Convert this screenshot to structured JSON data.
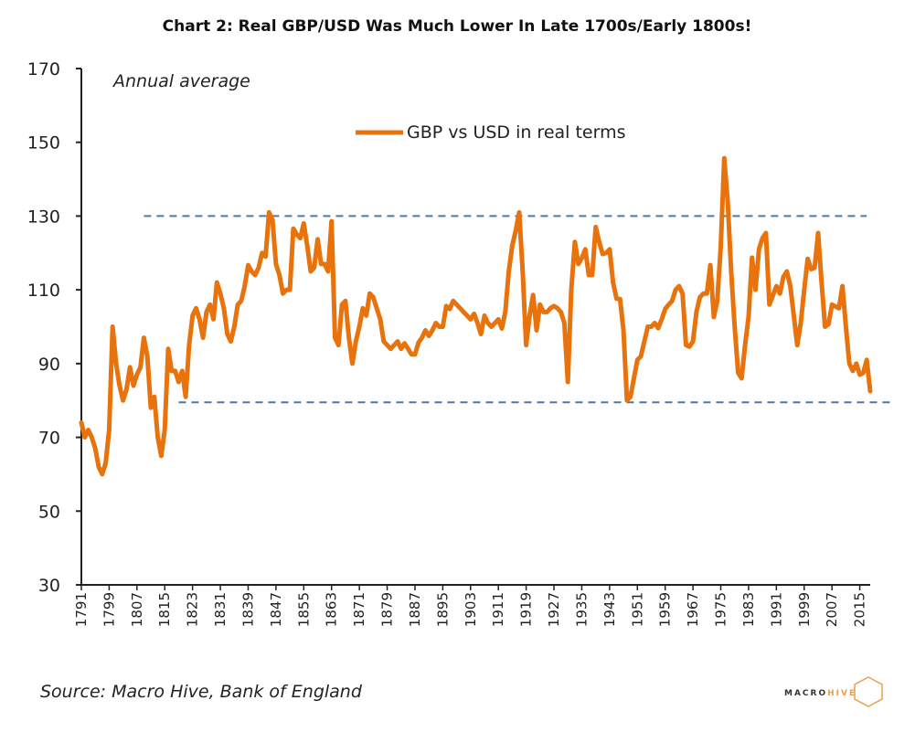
{
  "chart_data": {
    "type": "line",
    "title": "Chart 2: Real GBP/USD Was Much Lower In Late 1700s/Early 1800s!",
    "annotation": "Annual average",
    "source": "Source: Macro Hive, Bank of England",
    "logo_text": "MACRO HIVE",
    "xlabel": "",
    "ylabel": "",
    "xlim": [
      1791,
      2018
    ],
    "ylim": [
      30,
      170
    ],
    "yticks": [
      30,
      50,
      70,
      90,
      110,
      130,
      150,
      170
    ],
    "xticks": [
      1791,
      1799,
      1807,
      1815,
      1823,
      1831,
      1839,
      1847,
      1855,
      1863,
      1871,
      1879,
      1887,
      1895,
      1903,
      1911,
      1919,
      1927,
      1935,
      1943,
      1951,
      1959,
      1967,
      1975,
      1983,
      1991,
      1999,
      2007,
      2015
    ],
    "grid": false,
    "legend_placement": "top-center",
    "colors": {
      "series": "#E8720C",
      "reference": "#4A78B0"
    },
    "reference_lines": [
      {
        "value": 130,
        "x_start": 1809,
        "x_end": 2017,
        "style": "dashed"
      },
      {
        "value": 79.5,
        "x_start": 1819,
        "x_end": 2025,
        "style": "dashed"
      }
    ],
    "series": [
      {
        "name": "GBP vs USD in real terms",
        "x": [
          1791,
          1792,
          1793,
          1794,
          1795,
          1796,
          1797,
          1798,
          1799,
          1800,
          1801,
          1802,
          1803,
          1804,
          1805,
          1806,
          1807,
          1808,
          1809,
          1810,
          1811,
          1812,
          1813,
          1814,
          1815,
          1816,
          1817,
          1818,
          1819,
          1820,
          1821,
          1822,
          1823,
          1824,
          1825,
          1826,
          1827,
          1828,
          1829,
          1830,
          1831,
          1832,
          1833,
          1834,
          1835,
          1836,
          1837,
          1838,
          1839,
          1840,
          1841,
          1842,
          1843,
          1844,
          1845,
          1846,
          1847,
          1848,
          1849,
          1850,
          1851,
          1852,
          1853,
          1854,
          1855,
          1856,
          1857,
          1858,
          1859,
          1860,
          1861,
          1862,
          1863,
          1864,
          1865,
          1866,
          1867,
          1868,
          1869,
          1870,
          1871,
          1872,
          1873,
          1874,
          1875,
          1876,
          1877,
          1878,
          1879,
          1880,
          1881,
          1882,
          1883,
          1884,
          1885,
          1886,
          1887,
          1888,
          1889,
          1890,
          1891,
          1892,
          1893,
          1894,
          1895,
          1896,
          1897,
          1898,
          1899,
          1900,
          1901,
          1902,
          1903,
          1904,
          1905,
          1906,
          1907,
          1908,
          1909,
          1910,
          1911,
          1912,
          1913,
          1914,
          1915,
          1916,
          1917,
          1918,
          1919,
          1920,
          1921,
          1922,
          1923,
          1924,
          1925,
          1926,
          1927,
          1928,
          1929,
          1930,
          1931,
          1932,
          1933,
          1934,
          1935,
          1936,
          1937,
          1938,
          1939,
          1940,
          1941,
          1942,
          1943,
          1944,
          1945,
          1946,
          1947,
          1948,
          1949,
          1950,
          1951,
          1952,
          1953,
          1954,
          1955,
          1956,
          1957,
          1958,
          1959,
          1960,
          1961,
          1962,
          1963,
          1964,
          1965,
          1966,
          1967,
          1968,
          1969,
          1970,
          1971,
          1972,
          1973,
          1974,
          1975,
          1976,
          1977,
          1978,
          1979,
          1980,
          1981,
          1982,
          1983,
          1984,
          1985,
          1986,
          1987,
          1988,
          1989,
          1990,
          1991,
          1992,
          1993,
          1994,
          1995,
          1996,
          1997,
          1998,
          1999,
          2000,
          2001,
          2002,
          2003,
          2004,
          2005,
          2006,
          2007,
          2008,
          2009,
          2010,
          2011,
          2012,
          2013,
          2014,
          2015,
          2016,
          2017,
          2018
        ],
        "y": [
          74,
          70,
          72,
          70,
          67,
          62,
          60,
          63,
          72,
          100,
          90,
          84,
          80,
          83,
          89,
          84,
          87,
          89,
          97,
          92,
          78,
          81,
          70,
          65,
          72,
          94,
          88,
          88,
          85,
          88,
          81,
          95,
          103,
          105,
          102,
          97,
          104,
          106,
          102,
          112,
          109,
          105,
          98,
          96,
          100,
          106,
          107,
          111,
          116.7,
          115,
          114,
          116,
          120,
          119,
          131,
          129,
          117,
          114,
          109,
          110,
          110,
          126.6,
          125,
          124,
          128,
          122,
          115,
          116,
          123.7,
          117,
          117,
          115,
          128.6,
          97,
          95,
          106,
          107,
          97,
          90,
          96,
          100,
          105,
          103,
          109,
          108,
          105,
          102,
          96,
          95,
          94,
          95,
          96,
          94,
          95.5,
          94,
          92.5,
          92.5,
          95.7,
          97,
          99,
          97.5,
          99,
          101,
          100,
          100,
          105.6,
          104.8,
          107,
          106,
          105,
          104,
          103,
          102,
          103.5,
          101,
          98,
          103,
          101,
          100,
          101,
          102,
          99.5,
          104,
          115,
          122,
          126,
          131,
          115,
          95,
          103,
          108.6,
          99,
          106,
          104,
          104,
          105,
          105.6,
          105,
          104,
          101,
          85,
          110,
          123,
          117,
          118.6,
          121,
          114,
          114,
          127,
          123,
          119.7,
          120,
          121,
          112,
          107.6,
          107.5,
          99,
          80,
          81,
          86,
          91,
          92,
          96,
          100,
          100,
          101,
          99.6,
          102,
          104.8,
          106,
          107,
          110,
          111,
          109,
          95,
          94.6,
          96,
          104,
          108,
          109,
          109,
          116.7,
          102.6,
          107,
          121.7,
          145.7,
          134,
          115,
          100,
          87.5,
          86,
          95,
          102.6,
          118.7,
          110,
          121,
          124,
          125.4,
          106,
          108.5,
          111,
          109,
          113.5,
          115,
          111,
          103,
          95,
          101,
          110,
          118.4,
          115.6,
          116,
          125.4,
          112,
          100,
          100.7,
          106,
          105.5,
          105,
          111,
          100,
          90,
          88,
          90,
          87,
          87.5,
          91,
          82.5
        ]
      }
    ]
  }
}
